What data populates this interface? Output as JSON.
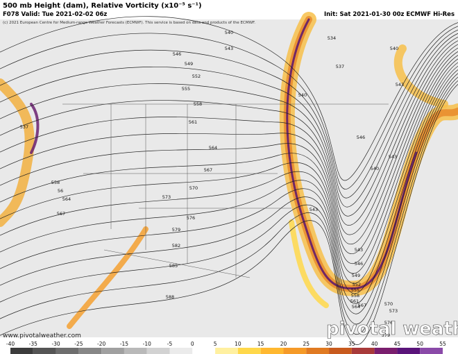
{
  "header": {
    "title": "500 mb Height (dam), Relative Vorticity (x10⁻⁵ s⁻¹)",
    "valid": "F078 Valid: Tue 2021-02-02 06z",
    "init": "Init: Sat 2021-01-30 00z ECMWF Hi-Res",
    "copyright": "(c) 2021 European Centre for Medium-range Weather Forecasts (ECMWF). This service is based on data and products of the ECMWF."
  },
  "contour_labels": [
    "540",
    "543",
    "534",
    "540",
    "546",
    "549",
    "552",
    "537",
    "543",
    "555",
    "540",
    "558",
    "537",
    "561",
    "546",
    "564",
    "543",
    "540",
    "567",
    "558",
    "56",
    "570",
    "564",
    "573",
    "543",
    "567",
    "576",
    "579",
    "543",
    "582",
    "546",
    "585",
    "549",
    "552",
    "555",
    "558",
    "561",
    "564",
    "567",
    "570",
    "573",
    "576",
    "579",
    "588"
  ],
  "footer": {
    "website": "www.pivotalweather.com",
    "watermark": "pivotal weather"
  },
  "colorbar": {
    "ticks": [
      -40,
      -35,
      -30,
      -25,
      -20,
      -15,
      -10,
      -5,
      0,
      5,
      10,
      15,
      20,
      25,
      30,
      35,
      40,
      45,
      50,
      55
    ],
    "colors": [
      "#3c3c3c",
      "#555555",
      "#6e6e6e",
      "#878787",
      "#a0a0a0",
      "#b9b9b9",
      "#d2d2d2",
      "#ebebeb",
      "#ffffff",
      "#fff0a0",
      "#ffd84a",
      "#ffb830",
      "#f59a28",
      "#e07a22",
      "#c85a1e",
      "#a83a3a",
      "#7a1e6e",
      "#5a147a",
      "#8a4aa8"
    ]
  }
}
